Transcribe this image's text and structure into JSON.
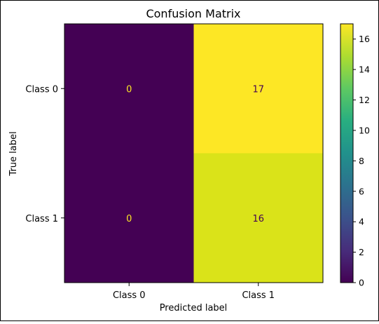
{
  "chart_data": {
    "type": "heatmap",
    "title": "Confusion Matrix",
    "xlabel": "Predicted label",
    "ylabel": "True label",
    "x_categories": [
      "Class 0",
      "Class 1"
    ],
    "y_categories": [
      "Class 0",
      "Class 1"
    ],
    "matrix": [
      [
        0,
        17
      ],
      [
        0,
        16
      ]
    ],
    "cell_labels": [
      [
        "0",
        "17"
      ],
      [
        "0",
        "16"
      ]
    ],
    "colormap": "viridis",
    "colorbar": {
      "range": [
        0,
        17
      ],
      "ticks": [
        0,
        2,
        4,
        6,
        8,
        10,
        12,
        14,
        16
      ],
      "tick_labels": [
        "0",
        "2",
        "4",
        "6",
        "8",
        "10",
        "12",
        "14",
        "16"
      ]
    },
    "colors": {
      "low": "#440154",
      "high": "#fde725",
      "cell_0_1": "#fde725",
      "cell_1_1": "#dae319",
      "text_on_dark": "#fde725",
      "text_on_light": "#440154"
    },
    "grid": false,
    "legend": "none"
  }
}
